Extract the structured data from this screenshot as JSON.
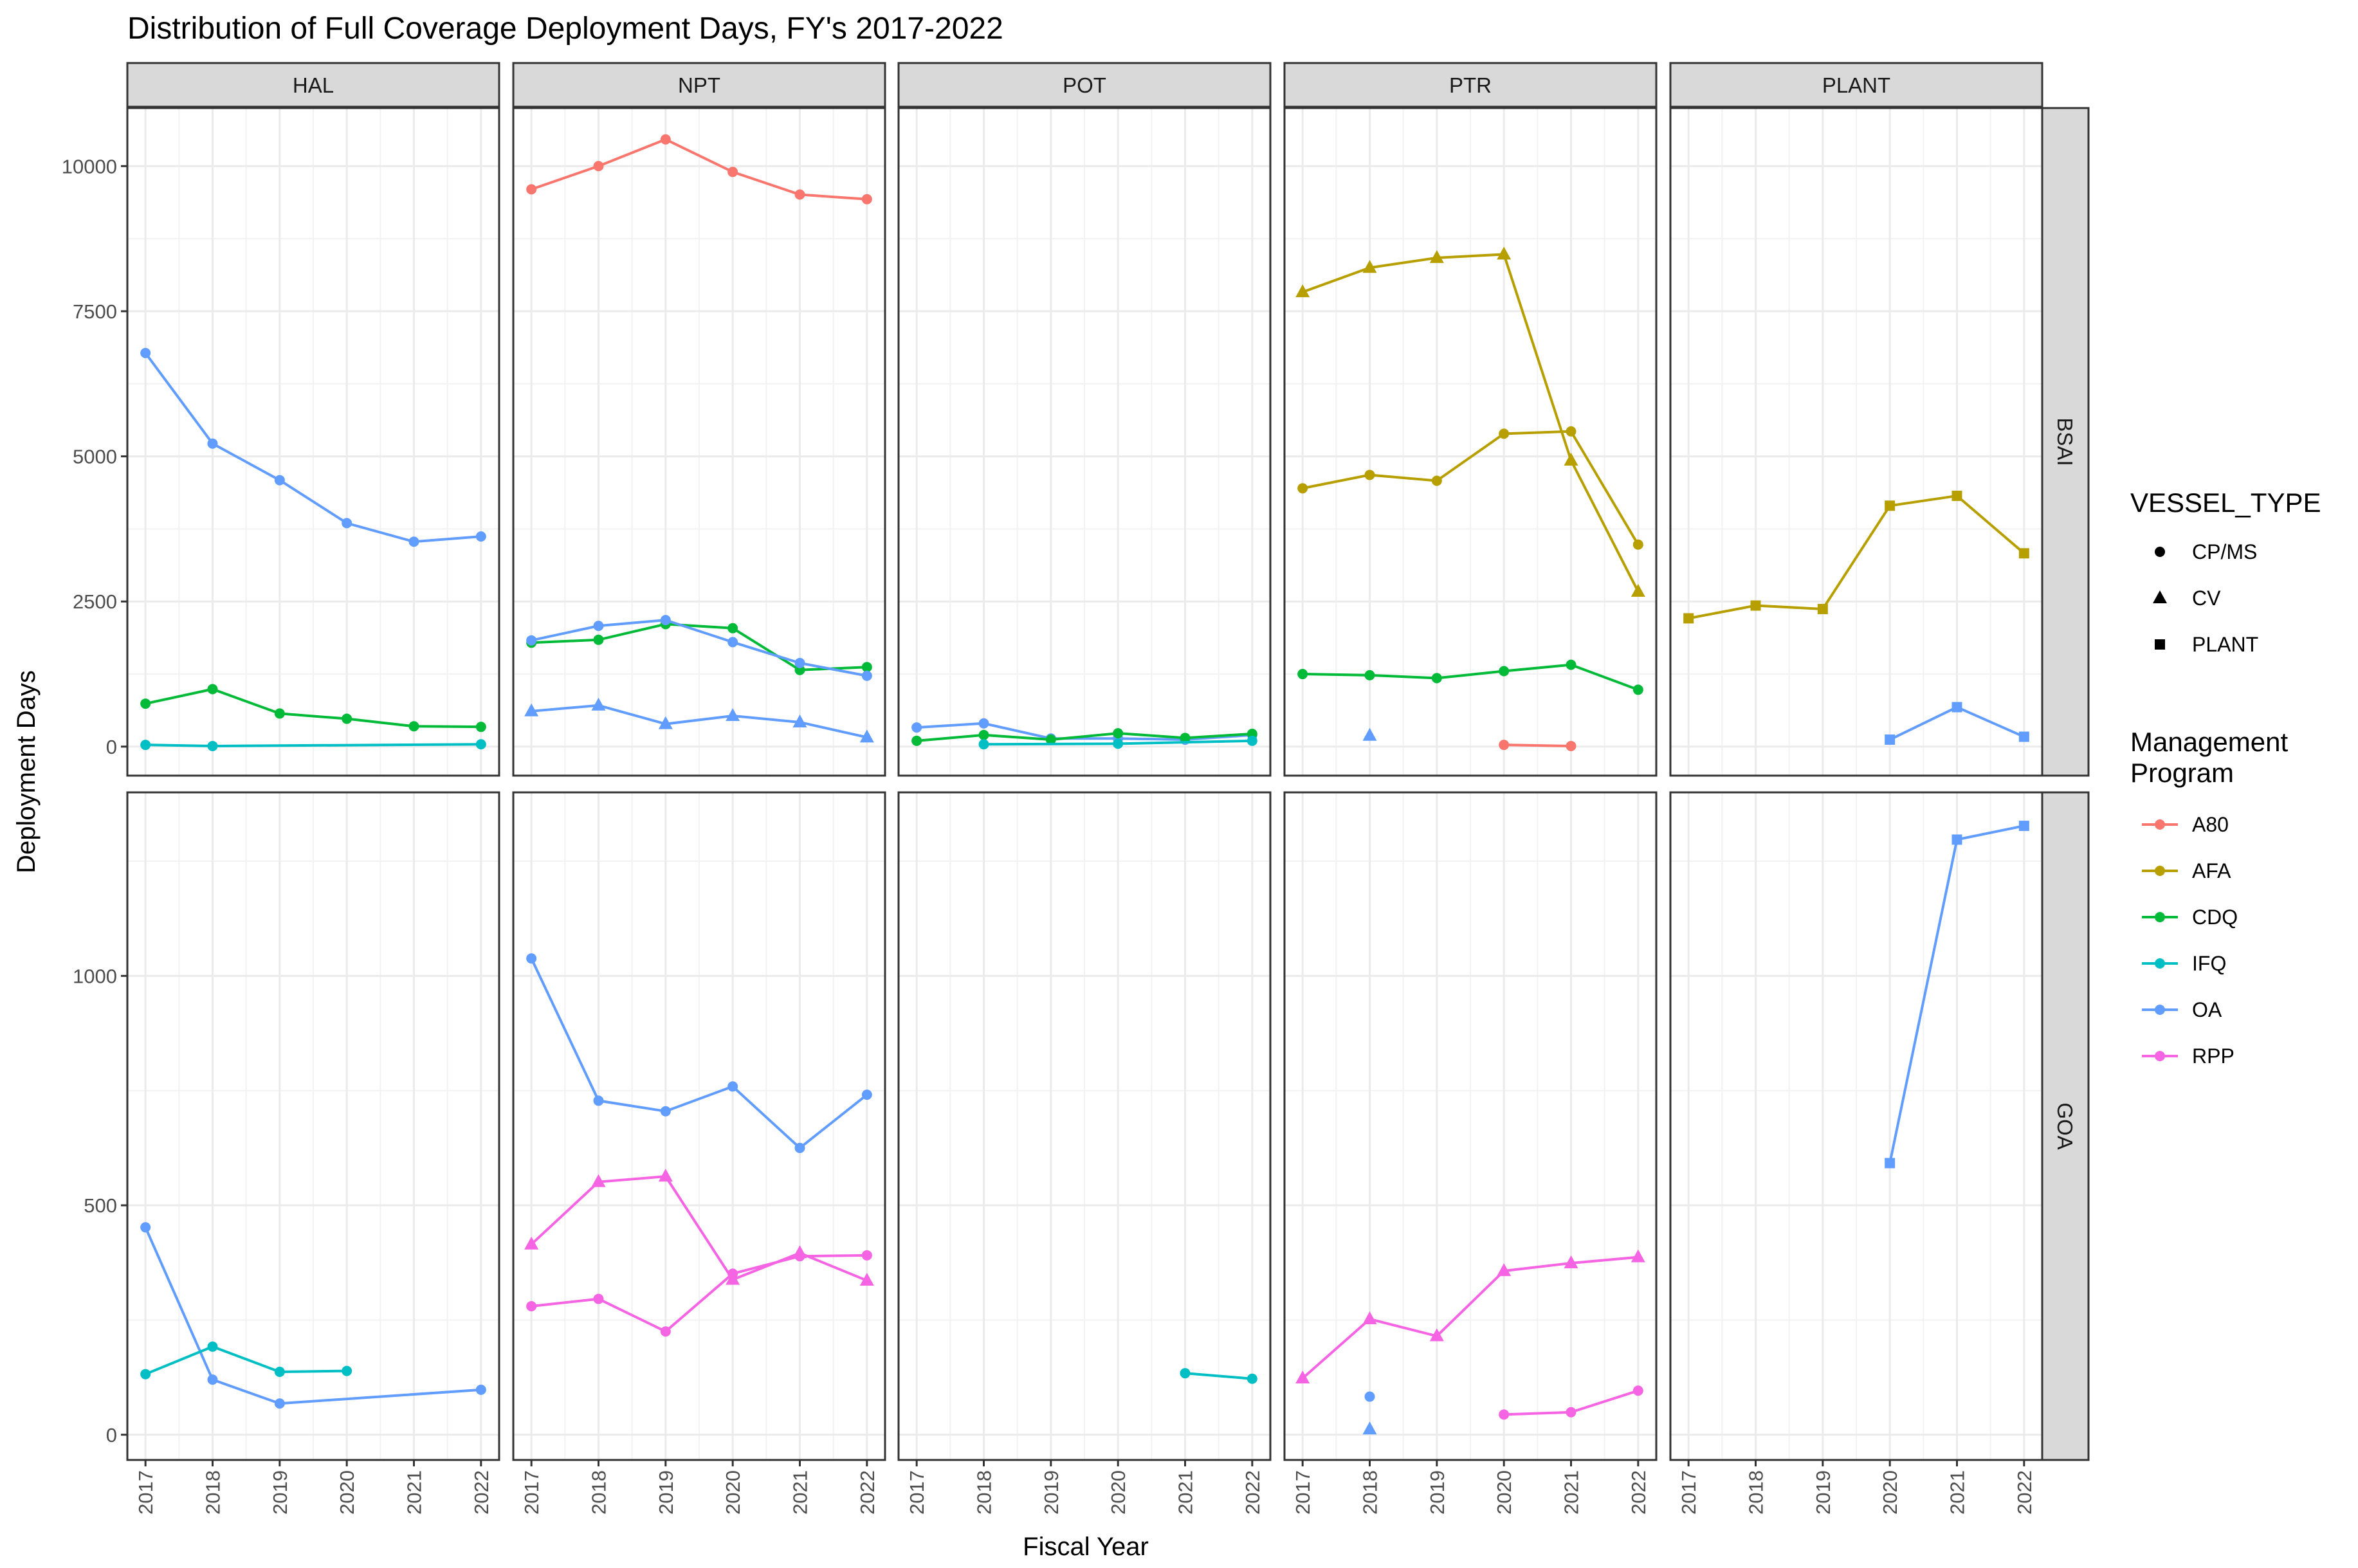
{
  "chart_data": {
    "type": "line",
    "title": "Distribution of Full Coverage Deployment Days, FY's 2017-2022",
    "xlabel": "Fiscal Year",
    "ylabel": "Deployment Days",
    "x": [
      2017,
      2018,
      2019,
      2020,
      2021,
      2022
    ],
    "x_tick_labels": [
      "2017",
      "2018",
      "2019",
      "2020",
      "2021",
      "2022"
    ],
    "grid": true,
    "legend_position": "right",
    "columns": [
      "HAL",
      "NPT",
      "POT",
      "PTR",
      "PLANT"
    ],
    "rows": [
      {
        "name": "BSAI",
        "ylim": [
          -500,
          11000
        ],
        "yticks": [
          0,
          2500,
          5000,
          7500,
          10000
        ],
        "ytick_labels": [
          "0",
          "2500",
          "5000",
          "7500",
          "10000"
        ]
      },
      {
        "name": "GOA",
        "ylim": [
          -55,
          1400
        ],
        "yticks": [
          0,
          500,
          1000
        ],
        "ytick_labels": [
          "0",
          "500",
          "1000"
        ]
      }
    ],
    "legend": {
      "shape_title": "VESSEL_TYPE",
      "shapes": [
        {
          "label": "CP/MS",
          "shape": "circle"
        },
        {
          "label": "CV",
          "shape": "triangle"
        },
        {
          "label": "PLANT",
          "shape": "square"
        }
      ],
      "color_title": [
        "Management",
        "Program"
      ],
      "colors": [
        {
          "label": "A80",
          "color": "#F8766D"
        },
        {
          "label": "AFA",
          "color": "#B79F00"
        },
        {
          "label": "CDQ",
          "color": "#00BA38"
        },
        {
          "label": "IFQ",
          "color": "#00BFC4"
        },
        {
          "label": "OA",
          "color": "#619CFF"
        },
        {
          "label": "RPP",
          "color": "#F564E3"
        }
      ]
    },
    "series": [
      {
        "row": "BSAI",
        "col": "HAL",
        "program": "OA",
        "vessel": "CP/MS",
        "x": [
          2017,
          2018,
          2019,
          2020,
          2021,
          2022
        ],
        "y": [
          6780,
          5220,
          4590,
          3850,
          3530,
          3620
        ]
      },
      {
        "row": "BSAI",
        "col": "HAL",
        "program": "CDQ",
        "vessel": "CP/MS",
        "x": [
          2017,
          2018,
          2019,
          2020,
          2021,
          2022
        ],
        "y": [
          740,
          990,
          570,
          480,
          350,
          340
        ]
      },
      {
        "row": "BSAI",
        "col": "HAL",
        "program": "IFQ",
        "vessel": "CP/MS",
        "x": [
          2017,
          2018,
          2022
        ],
        "y": [
          30,
          10,
          40
        ]
      },
      {
        "row": "BSAI",
        "col": "NPT",
        "program": "A80",
        "vessel": "CP/MS",
        "x": [
          2017,
          2018,
          2019,
          2020,
          2021,
          2022
        ],
        "y": [
          9600,
          10000,
          10460,
          9900,
          9510,
          9430
        ]
      },
      {
        "row": "BSAI",
        "col": "NPT",
        "program": "CDQ",
        "vessel": "CP/MS",
        "x": [
          2017,
          2018,
          2019,
          2020,
          2021,
          2022
        ],
        "y": [
          1790,
          1840,
          2110,
          2040,
          1320,
          1370
        ]
      },
      {
        "row": "BSAI",
        "col": "NPT",
        "program": "OA",
        "vessel": "CP/MS",
        "x": [
          2017,
          2018,
          2019,
          2020,
          2021,
          2022
        ],
        "y": [
          1830,
          2080,
          2180,
          1800,
          1440,
          1220
        ]
      },
      {
        "row": "BSAI",
        "col": "NPT",
        "program": "OA",
        "vessel": "CV",
        "x": [
          2017,
          2018,
          2019,
          2020,
          2021,
          2022
        ],
        "y": [
          610,
          710,
          390,
          530,
          420,
          160
        ]
      },
      {
        "row": "BSAI",
        "col": "POT",
        "program": "OA",
        "vessel": "CP/MS",
        "x": [
          2017,
          2018,
          2019,
          2020,
          2021,
          2022
        ],
        "y": [
          330,
          400,
          140,
          140,
          120,
          200
        ]
      },
      {
        "row": "BSAI",
        "col": "POT",
        "program": "CDQ",
        "vessel": "CP/MS",
        "x": [
          2017,
          2018,
          2019,
          2020,
          2021,
          2022
        ],
        "y": [
          100,
          200,
          120,
          230,
          150,
          220
        ]
      },
      {
        "row": "BSAI",
        "col": "POT",
        "program": "IFQ",
        "vessel": "CP/MS",
        "x": [
          2018,
          2020,
          2022
        ],
        "y": [
          40,
          50,
          100
        ]
      },
      {
        "row": "BSAI",
        "col": "PTR",
        "program": "AFA",
        "vessel": "CV",
        "x": [
          2017,
          2018,
          2019,
          2020,
          2021,
          2022
        ],
        "y": [
          7830,
          8250,
          8420,
          8480,
          4930,
          2670
        ]
      },
      {
        "row": "BSAI",
        "col": "PTR",
        "program": "AFA",
        "vessel": "CP/MS",
        "x": [
          2017,
          2018,
          2019,
          2020,
          2021,
          2022
        ],
        "y": [
          4450,
          4680,
          4580,
          5390,
          5430,
          3480
        ]
      },
      {
        "row": "BSAI",
        "col": "PTR",
        "program": "CDQ",
        "vessel": "CP/MS",
        "x": [
          2017,
          2018,
          2019,
          2020,
          2021,
          2022
        ],
        "y": [
          1250,
          1230,
          1180,
          1300,
          1410,
          980
        ]
      },
      {
        "row": "BSAI",
        "col": "PTR",
        "program": "OA",
        "vessel": "CV",
        "x": [
          2018
        ],
        "y": [
          190
        ]
      },
      {
        "row": "BSAI",
        "col": "PTR",
        "program": "A80",
        "vessel": "CP/MS",
        "x": [
          2020,
          2021
        ],
        "y": [
          30,
          10
        ]
      },
      {
        "row": "BSAI",
        "col": "PLANT",
        "program": "AFA",
        "vessel": "PLANT",
        "x": [
          2017,
          2018,
          2019,
          2020,
          2021,
          2022
        ],
        "y": [
          2210,
          2430,
          2370,
          4150,
          4320,
          3330
        ]
      },
      {
        "row": "BSAI",
        "col": "PLANT",
        "program": "OA",
        "vessel": "PLANT",
        "x": [
          2020,
          2021,
          2022
        ],
        "y": [
          120,
          680,
          170
        ]
      },
      {
        "row": "GOA",
        "col": "HAL",
        "program": "OA",
        "vessel": "CP/MS",
        "x": [
          2017,
          2018,
          2019,
          2022
        ],
        "y": [
          452,
          120,
          68,
          98
        ]
      },
      {
        "row": "GOA",
        "col": "HAL",
        "program": "IFQ",
        "vessel": "CP/MS",
        "x": [
          2017,
          2018,
          2019,
          2020
        ],
        "y": [
          132,
          192,
          137,
          139
        ]
      },
      {
        "row": "GOA",
        "col": "NPT",
        "program": "OA",
        "vessel": "CP/MS",
        "x": [
          2017,
          2018,
          2019,
          2020,
          2021,
          2022
        ],
        "y": [
          1038,
          728,
          705,
          759,
          625,
          741
        ]
      },
      {
        "row": "GOA",
        "col": "NPT",
        "program": "RPP",
        "vessel": "CV",
        "x": [
          2017,
          2018,
          2019,
          2020,
          2021,
          2022
        ],
        "y": [
          415,
          551,
          563,
          338,
          396,
          336
        ]
      },
      {
        "row": "GOA",
        "col": "NPT",
        "program": "RPP",
        "vessel": "CP/MS",
        "x": [
          2017,
          2018,
          2019,
          2020,
          2021,
          2022
        ],
        "y": [
          280,
          296,
          225,
          351,
          389,
          391
        ]
      },
      {
        "row": "GOA",
        "col": "POT",
        "program": "IFQ",
        "vessel": "CP/MS",
        "x": [
          2021,
          2022
        ],
        "y": [
          134,
          122
        ]
      },
      {
        "row": "GOA",
        "col": "PTR",
        "program": "RPP",
        "vessel": "CV",
        "x": [
          2017,
          2018,
          2019,
          2020,
          2021,
          2022
        ],
        "y": [
          123,
          252,
          215,
          357,
          374,
          387
        ]
      },
      {
        "row": "GOA",
        "col": "PTR",
        "program": "RPP",
        "vessel": "CP/MS",
        "x": [
          2020,
          2021,
          2022
        ],
        "y": [
          44,
          49,
          96
        ]
      },
      {
        "row": "GOA",
        "col": "PTR",
        "program": "OA",
        "vessel": "CP/MS",
        "x": [
          2018
        ],
        "y": [
          83
        ]
      },
      {
        "row": "GOA",
        "col": "PTR",
        "program": "OA",
        "vessel": "CV",
        "x": [
          2018
        ],
        "y": [
          12
        ]
      },
      {
        "row": "GOA",
        "col": "PLANT",
        "program": "OA",
        "vessel": "PLANT",
        "x": [
          2020,
          2021,
          2022
        ],
        "y": [
          592,
          1297,
          1327
        ]
      }
    ]
  }
}
